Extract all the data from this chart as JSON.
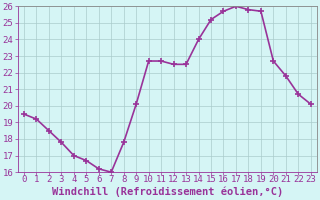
{
  "x": [
    0,
    1,
    2,
    3,
    4,
    5,
    6,
    7,
    8,
    9,
    10,
    11,
    12,
    13,
    14,
    15,
    16,
    17,
    18,
    19,
    20,
    21,
    22,
    23
  ],
  "y": [
    19.5,
    19.2,
    18.5,
    17.8,
    17.0,
    16.7,
    16.2,
    16.0,
    17.8,
    20.1,
    22.7,
    22.7,
    22.5,
    22.5,
    24.0,
    25.2,
    25.7,
    26.0,
    25.8,
    25.7,
    22.7,
    21.8,
    20.7,
    20.1
  ],
  "line_color": "#993399",
  "marker": "+",
  "marker_size": 4,
  "bg_color": "#d5f5f5",
  "grid_color": "#aacccc",
  "xlabel": "Windchill (Refroidissement éolien,°C)",
  "ylim": [
    16,
    26
  ],
  "xlim": [
    -0.5,
    23.5
  ],
  "yticks": [
    16,
    17,
    18,
    19,
    20,
    21,
    22,
    23,
    24,
    25,
    26
  ],
  "xticks": [
    0,
    1,
    2,
    3,
    4,
    5,
    6,
    7,
    8,
    9,
    10,
    11,
    12,
    13,
    14,
    15,
    16,
    17,
    18,
    19,
    20,
    21,
    22,
    23
  ],
  "tick_color": "#993399",
  "font_size": 6.5,
  "xlabel_fontsize": 7.5,
  "line_width": 1.2,
  "spine_color": "#888888",
  "marker_edge_width": 1.2
}
